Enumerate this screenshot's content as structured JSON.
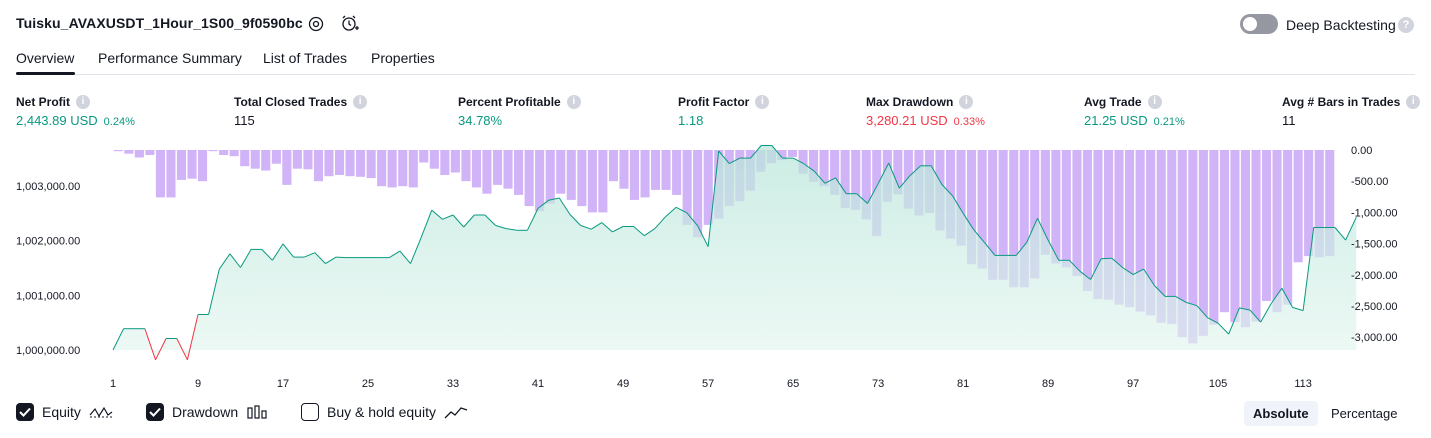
{
  "header": {
    "strategy_title": "Tuisku_AVAXUSDT_1Hour_1S00_9f0590bc",
    "deep_backtesting_label": "Deep Backtesting",
    "deep_backtesting_enabled": false,
    "help_glyph": "?"
  },
  "tabs": [
    {
      "label": "Overview",
      "active": true
    },
    {
      "label": "Performance Summary",
      "active": false
    },
    {
      "label": "List of Trades",
      "active": false
    },
    {
      "label": "Properties",
      "active": false
    }
  ],
  "metrics": [
    {
      "label": "Net Profit",
      "value": "2,443.89 USD",
      "pct": "0.24%",
      "tone": "green"
    },
    {
      "label": "Total Closed Trades",
      "value": "115",
      "pct": "",
      "tone": "plain"
    },
    {
      "label": "Percent Profitable",
      "value": "34.78%",
      "pct": "",
      "tone": "green"
    },
    {
      "label": "Profit Factor",
      "value": "1.18",
      "pct": "",
      "tone": "green"
    },
    {
      "label": "Max Drawdown",
      "value": "3,280.21 USD",
      "pct": "0.33%",
      "tone": "red"
    },
    {
      "label": "Avg Trade",
      "value": "21.25 USD",
      "pct": "0.21%",
      "tone": "green"
    },
    {
      "label": "Avg # Bars in Trades",
      "value": "11",
      "pct": "",
      "tone": "plain"
    }
  ],
  "info_glyph": "i",
  "chart_data": {
    "type": "area",
    "x_ticks": [
      "1",
      "9",
      "17",
      "25",
      "33",
      "41",
      "49",
      "57",
      "65",
      "73",
      "81",
      "89",
      "97",
      "105",
      "113"
    ],
    "x_range": [
      1,
      116
    ],
    "equity": {
      "name": "Equity",
      "ylim": [
        999700,
        1003700
      ],
      "y_ticks": [
        "1,003,000.00",
        "1,002,000.00",
        "1,001,000.00",
        "1,000,000.00"
      ],
      "y_tick_values": [
        1003000,
        1002000,
        1001000,
        1000000
      ],
      "baseline": 1000000,
      "up_color": "#089981",
      "down_color": "#f23645",
      "values": [
        1000000,
        1000390,
        1000390,
        1000390,
        999820,
        1000210,
        1000210,
        999820,
        1000650,
        1000650,
        1001480,
        1001760,
        1001510,
        1001840,
        1001840,
        1001640,
        1001940,
        1001700,
        1001700,
        1001780,
        1001580,
        1001700,
        1001690,
        1001690,
        1001690,
        1001690,
        1001690,
        1001810,
        1001580,
        1002060,
        1002560,
        1002390,
        1002470,
        1002250,
        1002470,
        1002470,
        1002280,
        1002220,
        1002190,
        1002190,
        1002590,
        1002740,
        1002780,
        1002480,
        1002280,
        1002210,
        1002330,
        1002160,
        1002260,
        1002260,
        1002090,
        1002220,
        1002440,
        1002610,
        1002510,
        1002280,
        1001890,
        1003640,
        1003410,
        1003510,
        1003510,
        1003740,
        1003740,
        1003510,
        1003510,
        1003410,
        1003270,
        1003050,
        1003150,
        1002860,
        1002860,
        1002680,
        1003040,
        1003420,
        1002960,
        1003190,
        1003370,
        1003370,
        1003030,
        1002820,
        1002500,
        1002200,
        1001970,
        1001730,
        1001730,
        1001730,
        1001970,
        1002410,
        1002010,
        1001640,
        1001640,
        1001440,
        1001290,
        1001670,
        1001680,
        1001510,
        1001380,
        1001480,
        1001180,
        1000980,
        1000980,
        1000870,
        1000810,
        1000590,
        1000490,
        1000290,
        1000770,
        1000730,
        1000510,
        1000850,
        1001130,
        1000780,
        1000720,
        1002240,
        1002240,
        1002240,
        1002010,
        1002430
      ],
      "reconstructed_points": 116
    },
    "drawdown": {
      "name": "Drawdown",
      "ylim": [
        -3350,
        0
      ],
      "y_ticks": [
        "0.00",
        "-500.00",
        "-1,000.00",
        "-1,500.00",
        "-2,000.00",
        "-2,500.00",
        "-3,000.00"
      ],
      "y_tick_values": [
        0,
        -500,
        -1000,
        -1500,
        -2000,
        -2500,
        -3000
      ],
      "color": "#d1b3f7",
      "values": [
        -20,
        -60,
        -120,
        -80,
        -760,
        -760,
        -480,
        -460,
        -500,
        -20,
        -80,
        -100,
        -260,
        -300,
        -330,
        -220,
        -560,
        -300,
        -310,
        -500,
        -420,
        -400,
        -420,
        -430,
        -450,
        -580,
        -600,
        -580,
        -600,
        -200,
        -300,
        -400,
        -360,
        -500,
        -600,
        -700,
        -560,
        -620,
        -720,
        -900,
        -980,
        -860,
        -700,
        -800,
        -900,
        -1000,
        -1000,
        -500,
        -620,
        -800,
        -760,
        -640,
        -640,
        -720,
        -1200,
        -1400,
        -1200,
        -1100,
        -900,
        -820,
        -650,
        -350,
        -210,
        -160,
        -110,
        -380,
        -510,
        -580,
        -720,
        -930,
        -960,
        -1110,
        -1380,
        -830,
        -710,
        -940,
        -1050,
        -1010,
        -1290,
        -1420,
        -1530,
        -1830,
        -1900,
        -2080,
        -2080,
        -2200,
        -2200,
        -2060,
        -1680,
        -1820,
        -1880,
        -2020,
        -2260,
        -2390,
        -2400,
        -2480,
        -2520,
        -2590,
        -2650,
        -2770,
        -2790,
        -3000,
        -3100,
        -2980,
        -2800,
        -2600,
        -2760,
        -2840,
        -2750,
        -2420,
        -2600,
        -2480,
        -1800,
        -1700,
        -1720,
        -1700
      ],
      "reconstructed_points": 115
    },
    "legend": [
      {
        "label": "Equity",
        "checked": true,
        "icon": "equity-line-icon"
      },
      {
        "label": "Drawdown",
        "checked": true,
        "icon": "drawdown-bars-icon"
      },
      {
        "label": "Buy & hold equity",
        "checked": false,
        "icon": "buy-hold-line-icon"
      }
    ]
  },
  "view_toggle": {
    "absolute_label": "Absolute",
    "percentage_label": "Percentage",
    "active": "Absolute"
  }
}
